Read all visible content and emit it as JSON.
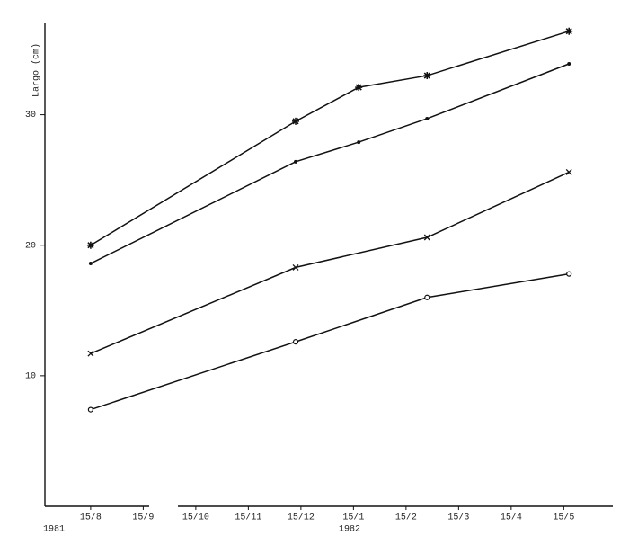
{
  "chart_data": {
    "type": "line",
    "y_label": "Largo (cm)",
    "annotations": [
      "1981",
      "1982"
    ],
    "xlim": [
      -0.87,
      9.9
    ],
    "xticks": [
      {
        "value": 0,
        "label": "15/8"
      },
      {
        "value": 1,
        "label": "15/9"
      },
      {
        "value": 2,
        "label": "15/10"
      },
      {
        "value": 3,
        "label": "15/11"
      },
      {
        "value": 4,
        "label": "15/12"
      },
      {
        "value": 5,
        "label": "15/1"
      },
      {
        "value": 6,
        "label": "15/2"
      },
      {
        "value": 7,
        "label": "15/3"
      },
      {
        "value": 8,
        "label": "15/4"
      },
      {
        "value": 9,
        "label": "15/5"
      }
    ],
    "ylim": [
      0,
      37
    ],
    "yticks": [
      10,
      20,
      30
    ],
    "series": [
      {
        "marker": "asterisk",
        "color": "#111111",
        "x": [
          0,
          3.9,
          5.1,
          6.4,
          9.1
        ],
        "values": [
          20.0,
          29.5,
          32.1,
          33.0,
          36.4
        ]
      },
      {
        "marker": "dot",
        "color": "#111111",
        "x": [
          0,
          3.9,
          5.1,
          6.4,
          9.1
        ],
        "values": [
          18.6,
          26.4,
          27.9,
          29.7,
          33.9
        ]
      },
      {
        "marker": "cross",
        "color": "#111111",
        "x": [
          0,
          3.9,
          6.4,
          9.1
        ],
        "values": [
          11.7,
          18.3,
          20.6,
          25.6
        ]
      },
      {
        "marker": "circle",
        "color": "#111111",
        "x": [
          0,
          3.9,
          6.4,
          9.1
        ],
        "values": [
          7.4,
          12.6,
          16.0,
          17.8
        ]
      }
    ]
  }
}
